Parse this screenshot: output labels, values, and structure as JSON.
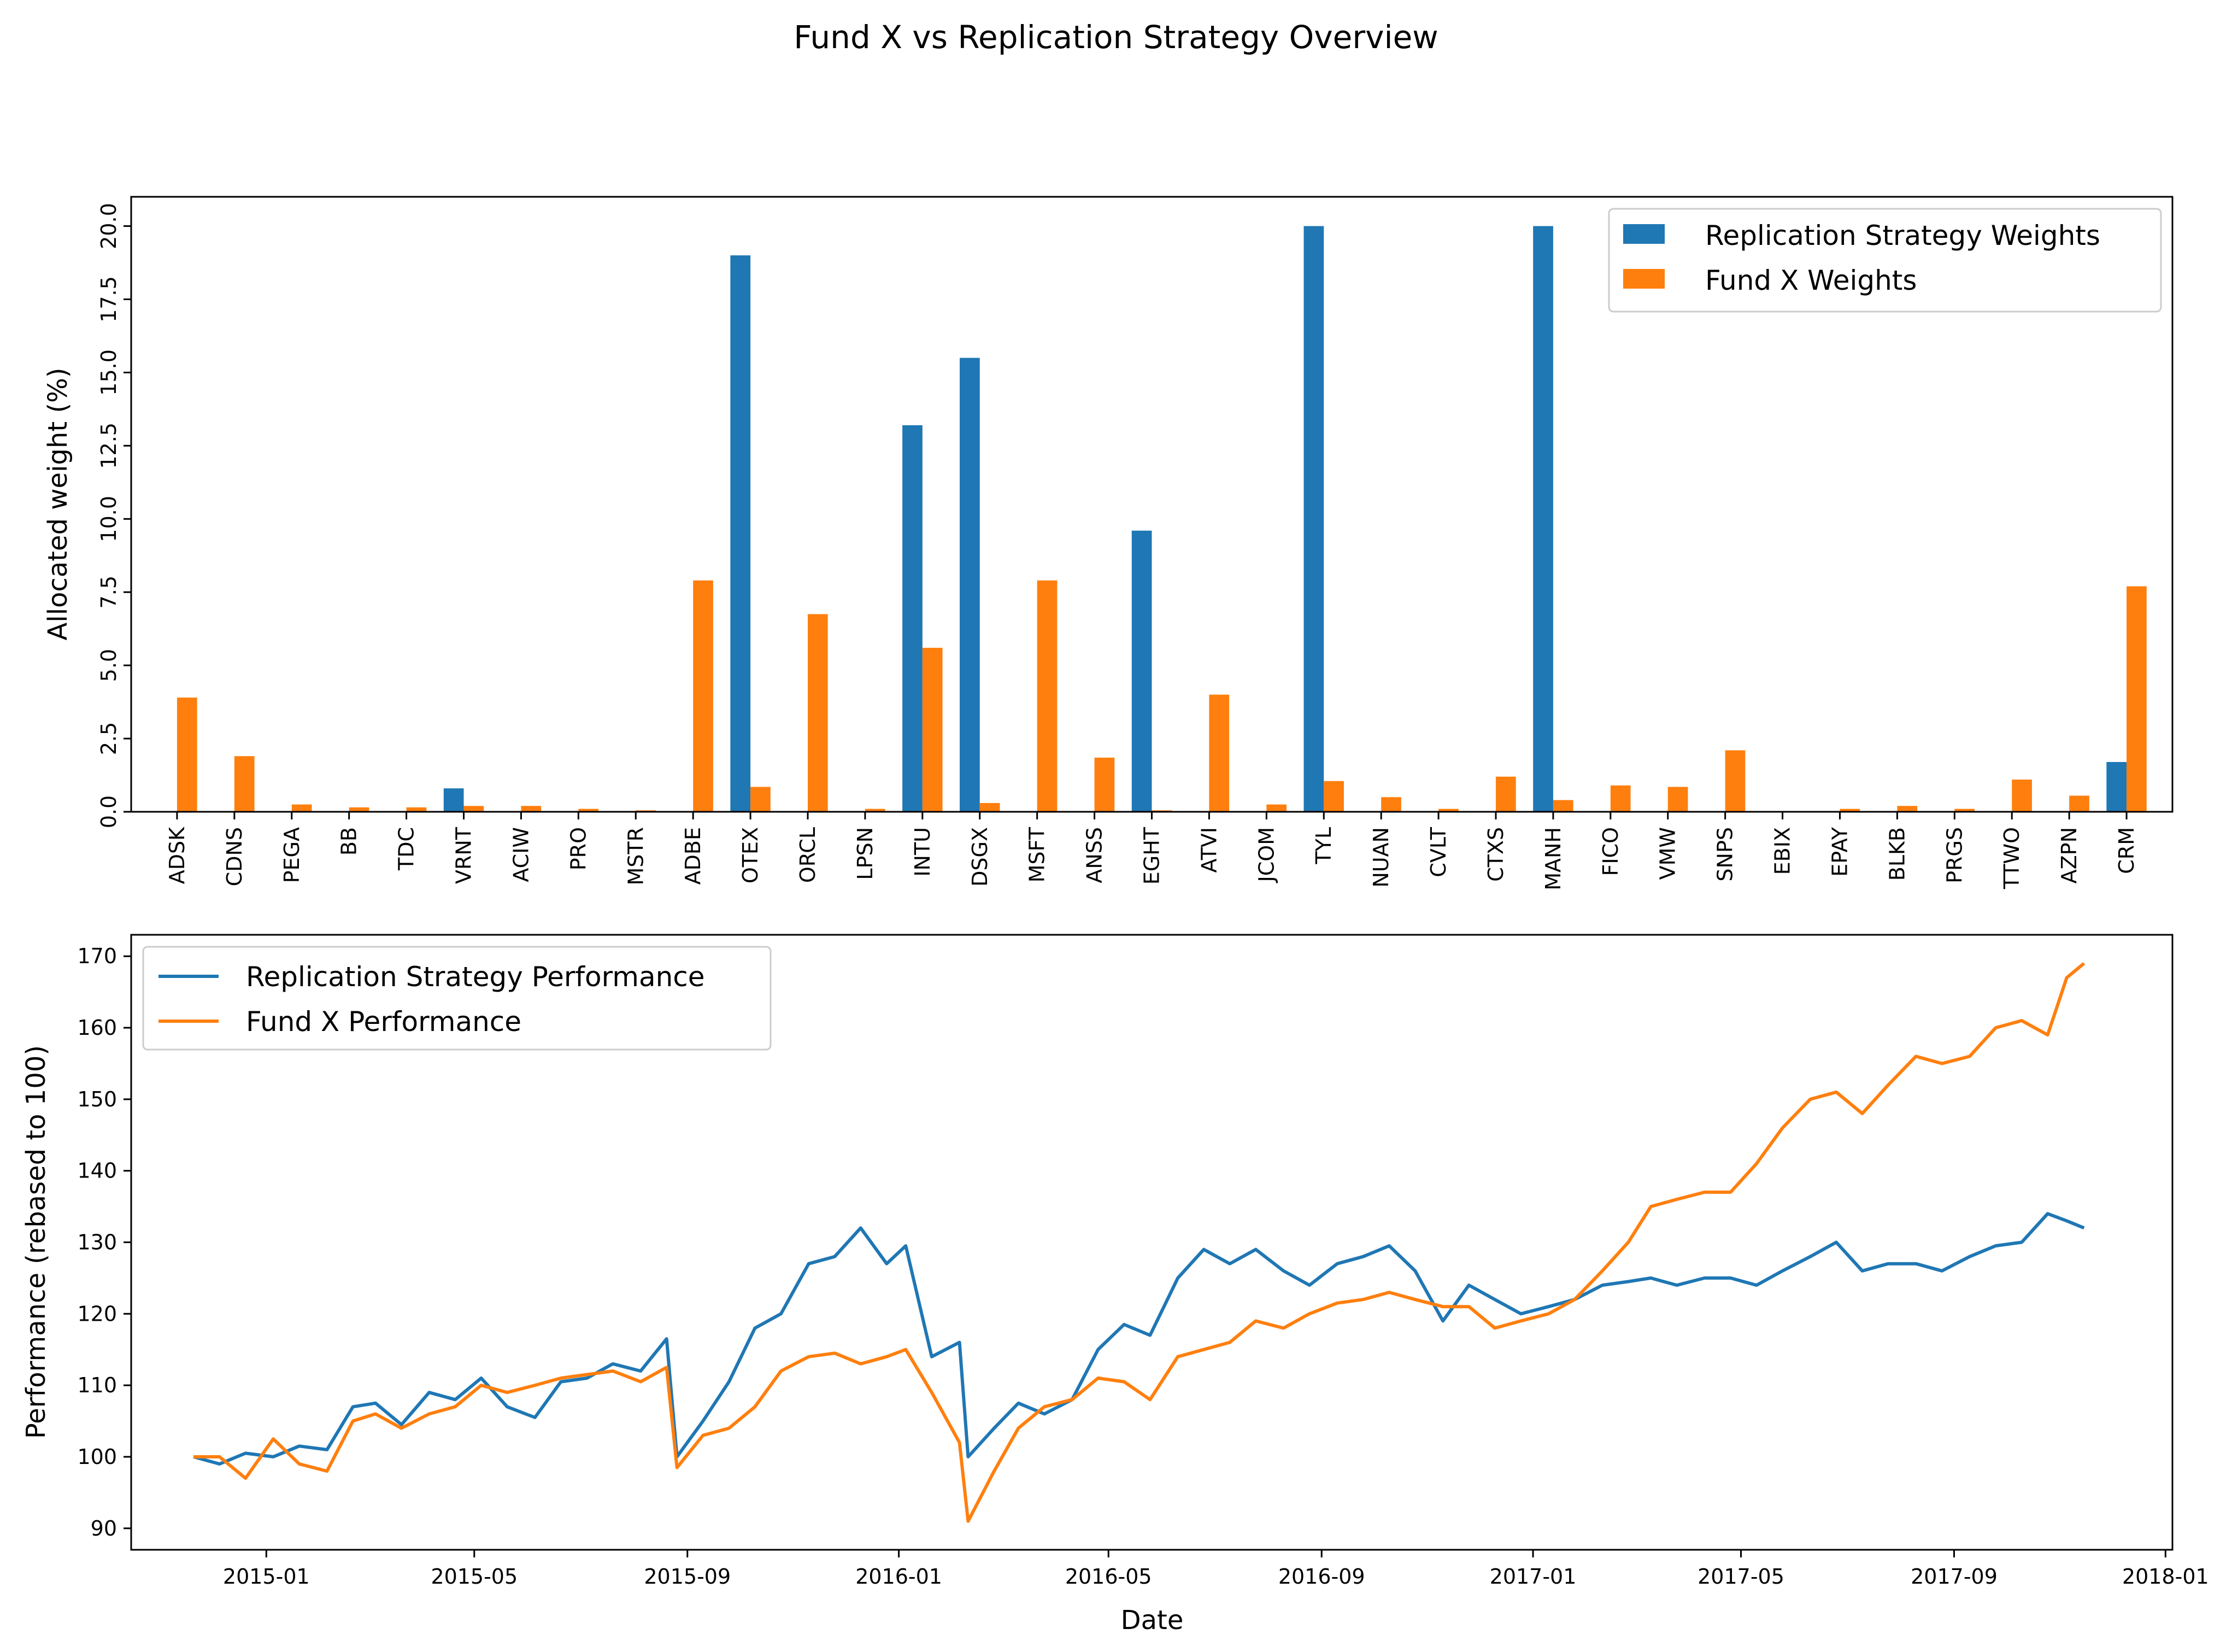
{
  "figure": {
    "title": "Fund X vs Replication Strategy Overview"
  },
  "colors": {
    "replication": "#1f77b4",
    "fund": "#ff7f0e"
  },
  "chart_data": [
    {
      "type": "bar",
      "xlabel": "",
      "ylabel": "Allocated weight (%)",
      "ylim": [
        0,
        21
      ],
      "yticks": [
        "0.0",
        "2.5",
        "5.0",
        "7.5",
        "10.0",
        "12.5",
        "15.0",
        "17.5",
        "20.0"
      ],
      "grid": false,
      "legend_position": "top-right",
      "categories": [
        "ADSK",
        "CDNS",
        "PEGA",
        "BB",
        "TDC",
        "VRNT",
        "ACIW",
        "PRO",
        "MSTR",
        "ADBE",
        "OTEX",
        "ORCL",
        "LPSN",
        "INTU",
        "DSGX",
        "MSFT",
        "ANSS",
        "EGHT",
        "ATVI",
        "JCOM",
        "TYL",
        "NUAN",
        "CVLT",
        "CTXS",
        "MANH",
        "FICO",
        "VMW",
        "SNPS",
        "EBIX",
        "EPAY",
        "BLKB",
        "PRGS",
        "TTWO",
        "AZPN",
        "CRM"
      ],
      "series": [
        {
          "name": "Replication Strategy Weights",
          "values": [
            0,
            0,
            0,
            0,
            0,
            0.8,
            0,
            0,
            0,
            0,
            19.0,
            0,
            0,
            13.2,
            15.5,
            0,
            0,
            9.6,
            0,
            0,
            20.0,
            0,
            0,
            0,
            20.0,
            0,
            0,
            0,
            0,
            0,
            0,
            0,
            0,
            0,
            1.7
          ]
        },
        {
          "name": "Fund X Weights",
          "values": [
            3.9,
            1.9,
            0.25,
            0.15,
            0.15,
            0.2,
            0.2,
            0.1,
            0.05,
            7.9,
            0.85,
            6.75,
            0.1,
            5.6,
            0.3,
            7.9,
            1.85,
            0.05,
            4.0,
            0.25,
            1.05,
            0.5,
            0.1,
            1.2,
            0.4,
            0.9,
            0.85,
            2.1,
            0,
            0.1,
            0.2,
            0.1,
            1.1,
            0.55,
            7.7
          ]
        }
      ]
    },
    {
      "type": "line",
      "xlabel": "Date",
      "ylabel": "Performance (rebased to 100)",
      "xlim": [
        "2014-10-15",
        "2018-01-05"
      ],
      "ylim": [
        87,
        173
      ],
      "xticks": [
        "2015-01",
        "2015-05",
        "2015-09",
        "2016-01",
        "2016-05",
        "2016-09",
        "2017-01",
        "2017-05",
        "2017-09",
        "2018-01"
      ],
      "yticks": [
        "90",
        "100",
        "110",
        "120",
        "130",
        "140",
        "150",
        "160",
        "170"
      ],
      "grid": false,
      "legend_position": "top-left",
      "series": [
        {
          "name": "Replication Strategy Performance",
          "x": [
            "2014-11-20",
            "2014-12-05",
            "2014-12-20",
            "2015-01-05",
            "2015-01-20",
            "2015-02-05",
            "2015-02-20",
            "2015-03-05",
            "2015-03-20",
            "2015-04-05",
            "2015-04-20",
            "2015-05-05",
            "2015-05-20",
            "2015-06-05",
            "2015-06-20",
            "2015-07-05",
            "2015-07-20",
            "2015-08-05",
            "2015-08-20",
            "2015-08-26",
            "2015-09-10",
            "2015-09-25",
            "2015-10-10",
            "2015-10-25",
            "2015-11-10",
            "2015-11-25",
            "2015-12-10",
            "2015-12-25",
            "2016-01-05",
            "2016-01-20",
            "2016-02-05",
            "2016-02-10",
            "2016-02-25",
            "2016-03-10",
            "2016-03-25",
            "2016-04-10",
            "2016-04-25",
            "2016-05-10",
            "2016-05-25",
            "2016-06-10",
            "2016-06-25",
            "2016-07-10",
            "2016-07-25",
            "2016-08-10",
            "2016-08-25",
            "2016-09-10",
            "2016-09-25",
            "2016-10-10",
            "2016-10-25",
            "2016-11-10",
            "2016-11-25",
            "2016-12-10",
            "2016-12-25",
            "2017-01-10",
            "2017-01-25",
            "2017-02-10",
            "2017-02-25",
            "2017-03-10",
            "2017-03-25",
            "2017-04-10",
            "2017-04-25",
            "2017-05-10",
            "2017-05-25",
            "2017-06-10",
            "2017-06-25",
            "2017-07-10",
            "2017-07-25",
            "2017-08-10",
            "2017-08-25",
            "2017-09-10",
            "2017-09-25",
            "2017-10-10",
            "2017-10-25",
            "2017-11-05",
            "2017-11-15"
          ],
          "y": [
            100,
            99,
            100.5,
            100,
            101.5,
            101,
            107,
            107.5,
            104.5,
            109,
            108,
            111,
            107,
            105.5,
            110.5,
            111,
            113,
            112,
            116.5,
            100,
            105,
            110.5,
            118,
            120,
            127,
            128,
            132,
            127,
            129.5,
            114,
            116,
            100,
            104,
            107.5,
            106,
            108,
            115,
            118.5,
            117,
            125,
            129,
            127,
            129,
            126,
            124,
            127,
            128,
            129.5,
            126,
            119,
            124,
            122,
            120,
            121,
            122,
            124,
            124.5,
            125,
            124,
            125,
            125,
            124,
            126,
            128,
            130,
            126,
            127,
            127,
            126,
            128,
            129.5,
            130,
            134,
            133,
            132
          ]
        },
        {
          "name": "Fund X Performance",
          "x": [
            "2014-11-20",
            "2014-12-05",
            "2014-12-20",
            "2015-01-05",
            "2015-01-20",
            "2015-02-05",
            "2015-02-20",
            "2015-03-05",
            "2015-03-20",
            "2015-04-05",
            "2015-04-20",
            "2015-05-05",
            "2015-05-20",
            "2015-06-05",
            "2015-06-20",
            "2015-07-05",
            "2015-07-20",
            "2015-08-05",
            "2015-08-20",
            "2015-08-26",
            "2015-09-10",
            "2015-09-25",
            "2015-10-10",
            "2015-10-25",
            "2015-11-10",
            "2015-11-25",
            "2015-12-10",
            "2015-12-25",
            "2016-01-05",
            "2016-01-20",
            "2016-02-05",
            "2016-02-10",
            "2016-02-25",
            "2016-03-10",
            "2016-03-25",
            "2016-04-10",
            "2016-04-25",
            "2016-05-10",
            "2016-05-25",
            "2016-06-10",
            "2016-06-25",
            "2016-07-10",
            "2016-07-25",
            "2016-08-10",
            "2016-08-25",
            "2016-09-10",
            "2016-09-25",
            "2016-10-10",
            "2016-10-25",
            "2016-11-10",
            "2016-11-25",
            "2016-12-10",
            "2016-12-25",
            "2017-01-10",
            "2017-01-25",
            "2017-02-10",
            "2017-02-25",
            "2017-03-10",
            "2017-03-25",
            "2017-04-10",
            "2017-04-25",
            "2017-05-10",
            "2017-05-25",
            "2017-06-10",
            "2017-06-25",
            "2017-07-10",
            "2017-07-25",
            "2017-08-10",
            "2017-08-25",
            "2017-09-10",
            "2017-09-25",
            "2017-10-10",
            "2017-10-25",
            "2017-11-05",
            "2017-11-15"
          ],
          "y": [
            100,
            100,
            97,
            102.5,
            99,
            98,
            105,
            106,
            104,
            106,
            107,
            110,
            109,
            110,
            111,
            111.5,
            112,
            110.5,
            112.5,
            98.5,
            103,
            104,
            107,
            112,
            114,
            114.5,
            113,
            114,
            115,
            109,
            102,
            91,
            98,
            104,
            107,
            108,
            111,
            110.5,
            108,
            114,
            115,
            116,
            119,
            118,
            120,
            121.5,
            122,
            123,
            122,
            121,
            121,
            118,
            119,
            120,
            122,
            126,
            130,
            135,
            136,
            137,
            137,
            141,
            146,
            150,
            151,
            148,
            152,
            156,
            155,
            156,
            160,
            161,
            159,
            167,
            169
          ]
        }
      ]
    }
  ]
}
